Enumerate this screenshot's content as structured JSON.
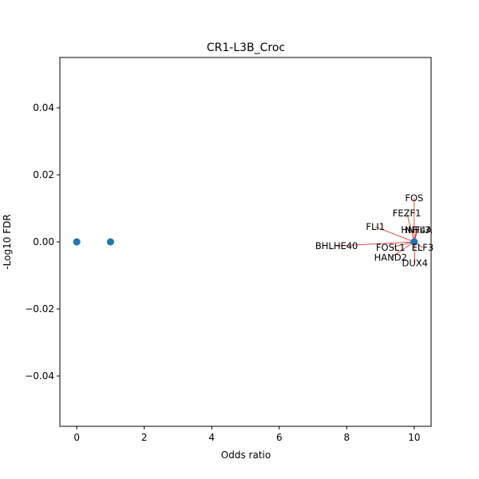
{
  "chart_data": {
    "type": "scatter",
    "title": "CR1-L3B_Croc",
    "xlabel": "Odds ratio",
    "ylabel": "-Log10 FDR",
    "xlim": [
      -0.5,
      10.5
    ],
    "ylim": [
      -0.055,
      0.055
    ],
    "xticks": [
      0,
      2,
      4,
      6,
      8,
      10
    ],
    "xtick_labels": [
      "0",
      "2",
      "4",
      "6",
      "8",
      "10"
    ],
    "yticks": [
      -0.04,
      -0.02,
      0.0,
      0.02,
      0.04
    ],
    "ytick_labels": [
      "−0.04",
      "−0.02",
      "0.00",
      "0.02",
      "0.04"
    ],
    "grid": false,
    "marker_color": "#1f77b4",
    "annotation_line_color": "#d62728",
    "points": [
      {
        "x": 0,
        "y": 0
      },
      {
        "x": 0,
        "y": 0
      },
      {
        "x": 1,
        "y": 0
      },
      {
        "x": 10,
        "y": 0
      },
      {
        "x": 10,
        "y": 0
      }
    ],
    "annotations": [
      {
        "text": "FOS",
        "x": 10,
        "y": 0,
        "tx": 10.0,
        "ty": 0.0131
      },
      {
        "text": "FEZF1",
        "x": 10,
        "y": 0,
        "tx": 9.78,
        "ty": 0.0086
      },
      {
        "text": "FLI1",
        "x": 10,
        "y": 0,
        "tx": 8.85,
        "ty": 0.0045
      },
      {
        "text": "HNF4A",
        "x": 10,
        "y": 0,
        "tx": 10.07,
        "ty": 0.0036
      },
      {
        "text": "NFIL3",
        "x": 10,
        "y": 0,
        "tx": 10.1,
        "ty": 0.0036
      },
      {
        "text": "BHLHE40",
        "x": 10,
        "y": 0,
        "tx": 7.7,
        "ty": -0.0012
      },
      {
        "text": "FOSL1",
        "x": 10,
        "y": 0,
        "tx": 9.3,
        "ty": -0.0017
      },
      {
        "text": "ELF3",
        "x": 10,
        "y": 0,
        "tx": 10.25,
        "ty": -0.0017
      },
      {
        "text": "HAND2",
        "x": 10,
        "y": 0,
        "tx": 9.3,
        "ty": -0.0047
      },
      {
        "text": "DUX4",
        "x": 10,
        "y": 0,
        "tx": 10.02,
        "ty": -0.0063
      }
    ]
  }
}
